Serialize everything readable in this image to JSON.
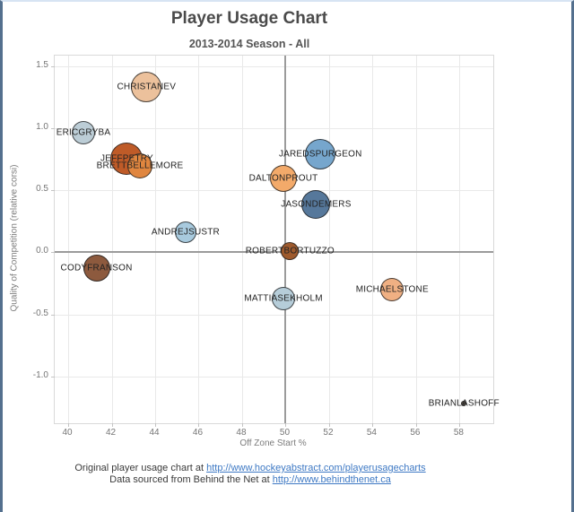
{
  "frame": {
    "side_border_color": "#54708e",
    "top_strip_color": "#d7e4f3"
  },
  "chart_data": {
    "type": "scatter",
    "title": "Player Usage Chart",
    "subtitle": "2013-2014 Season - All",
    "xlabel": "Off Zone Start %",
    "ylabel": "Quality of Competition (relative corsi)",
    "xlim": [
      39.38,
      59.55
    ],
    "ylim": [
      -1.38,
      1.59
    ],
    "x_ticks": [
      40,
      42,
      44,
      46,
      48,
      50,
      52,
      54,
      56,
      58
    ],
    "y_ticks": [
      1.5,
      1.0,
      0.5,
      0.0,
      -0.5,
      -1.0
    ],
    "reference_line_x": 50,
    "reference_line_y": 0,
    "grid": true,
    "legend": "none",
    "points": [
      {
        "label": "CHRISTANEV",
        "x": 43.6,
        "y": 1.34,
        "r": 17,
        "color": "#ecc19c"
      },
      {
        "label": "ERICGRYBA",
        "x": 40.7,
        "y": 0.97,
        "r": 13,
        "color": "#bccdd6"
      },
      {
        "label": "JEFFPETRY",
        "x": 42.7,
        "y": 0.76,
        "r": 18,
        "color": "#bf5b28"
      },
      {
        "label": "BRETTBELLEMORE",
        "x": 43.3,
        "y": 0.7,
        "r": 14,
        "color": "#e0863f"
      },
      {
        "label": "JAREDSPURGEON",
        "x": 51.6,
        "y": 0.79,
        "r": 17,
        "color": "#76a6cd"
      },
      {
        "label": "DALTONPROUT",
        "x": 49.9,
        "y": 0.6,
        "r": 15,
        "color": "#f3aa6a"
      },
      {
        "label": "JASONDEMERS",
        "x": 51.4,
        "y": 0.39,
        "r": 16,
        "color": "#56789b"
      },
      {
        "label": "ANDREJSUSTR",
        "x": 45.4,
        "y": 0.16,
        "r": 12,
        "color": "#a8cade"
      },
      {
        "label": "ROBERTBORTUZZO",
        "x": 50.2,
        "y": 0.01,
        "r": 10,
        "color": "#9e5a2d"
      },
      {
        "label": "CODYFRANSON",
        "x": 41.3,
        "y": -0.13,
        "r": 15,
        "color": "#8d5a3e"
      },
      {
        "label": "MATTIASEKHOLM",
        "x": 49.9,
        "y": -0.37,
        "r": 13,
        "color": "#b6cdd9"
      },
      {
        "label": "MICHAELSTONE",
        "x": 54.9,
        "y": -0.3,
        "r": 13,
        "color": "#f0b083"
      },
      {
        "label": "BRIANLASHOFF",
        "x": 58.2,
        "y": -1.22,
        "r": 3,
        "color": "#544c46"
      }
    ]
  },
  "footer": {
    "line1_prefix": "Original player usage chart at ",
    "line1_link": "http://www.hockeyabstract.com/playerusagecharts",
    "line2_prefix": "Data sourced from Behind the Net at ",
    "line2_link": "http://www.behindthenet.ca"
  }
}
